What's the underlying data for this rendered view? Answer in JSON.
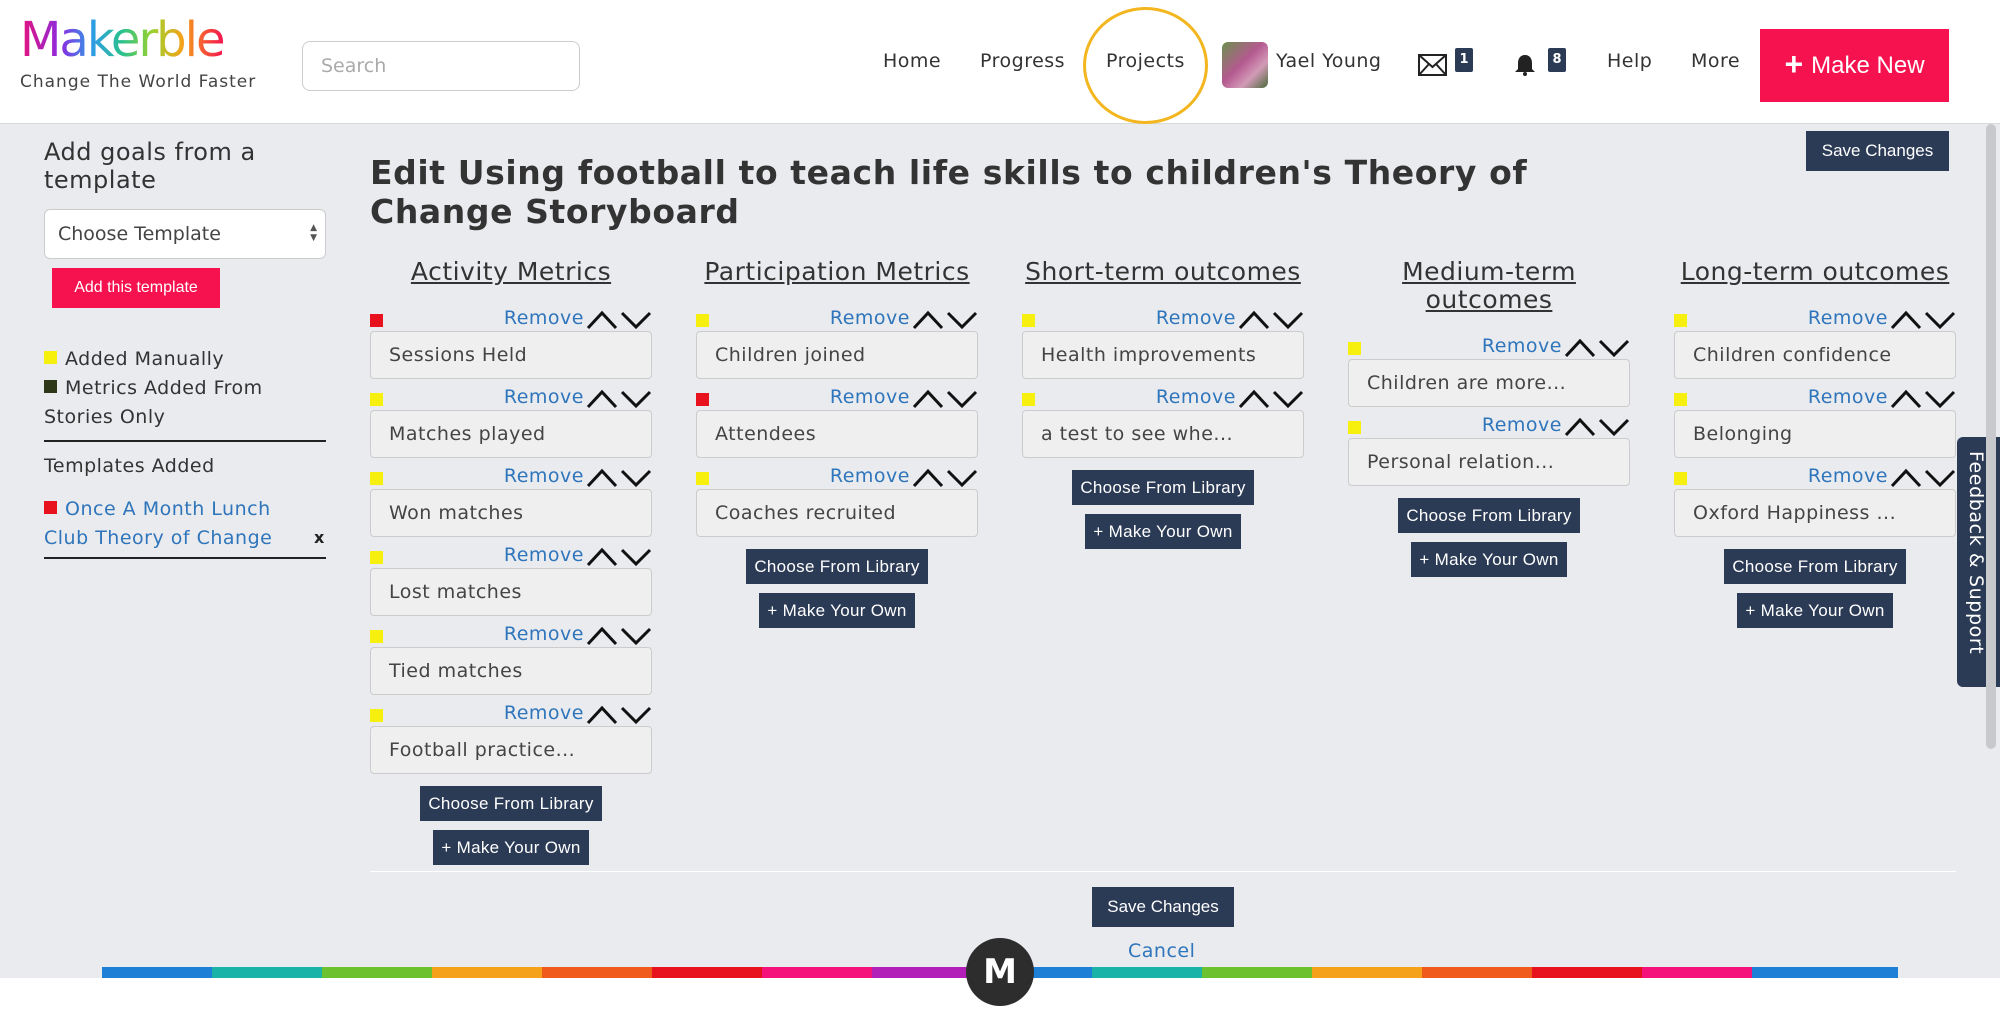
{
  "header": {
    "logo_text": "Makerble",
    "tagline": "Change The World Faster",
    "search_placeholder": "Search",
    "nav": {
      "home": "Home",
      "progress": "Progress",
      "projects": "Projects",
      "user": "Yael Young",
      "messages_count": "1",
      "notifications_count": "8",
      "help": "Help",
      "more": "More"
    },
    "make_new": "Make New"
  },
  "sidebar": {
    "title": "Add goals from a template",
    "select_value": "Choose Template",
    "add_button": "Add this template",
    "legend_manual": "Added Manually",
    "legend_stories_1": "Metrics Added From",
    "legend_stories_2": "Stories Only",
    "templates_added": "Templates Added",
    "template_1_a": "Once A Month Lunch",
    "template_1_b": "Club Theory of Change",
    "remove_x": "x"
  },
  "main": {
    "title": "Edit Using football to teach life skills to children's Theory of Change Storyboard",
    "save_changes": "Save Changes",
    "cancel": "Cancel",
    "remove_label": "Remove",
    "choose_library": "Choose From Library",
    "make_your_own": "+ Make Your Own",
    "columns": [
      {
        "heading": "Activity Metrics",
        "items": [
          "Sessions Held",
          "Matches played",
          "Won matches",
          "Lost matches",
          "Tied matches",
          "Football practice..."
        ]
      },
      {
        "heading": "Participation Metrics",
        "items": [
          "Children joined",
          "Attendees",
          "Coaches recruited"
        ]
      },
      {
        "heading": "Short-term outcomes",
        "items": [
          "Health improvements",
          "a test to see whe..."
        ]
      },
      {
        "heading": "Medium-term outcomes",
        "items": [
          "Children are more...",
          "Personal relation..."
        ]
      },
      {
        "heading": "Long-term outcomes",
        "items": [
          "Children confidence",
          "Belonging",
          "Oxford Happiness ..."
        ]
      }
    ]
  },
  "feedback_tab": "Feedback & Support",
  "footer_logo": "M",
  "colors": {
    "accent": "#f5124f",
    "navy": "#2b3a55",
    "link": "#2f75bb",
    "yellow_mark": "#f7f00f",
    "red_mark": "#e8121f",
    "dark_mark": "#2e3718",
    "projects_ring": "#f3b61f"
  }
}
